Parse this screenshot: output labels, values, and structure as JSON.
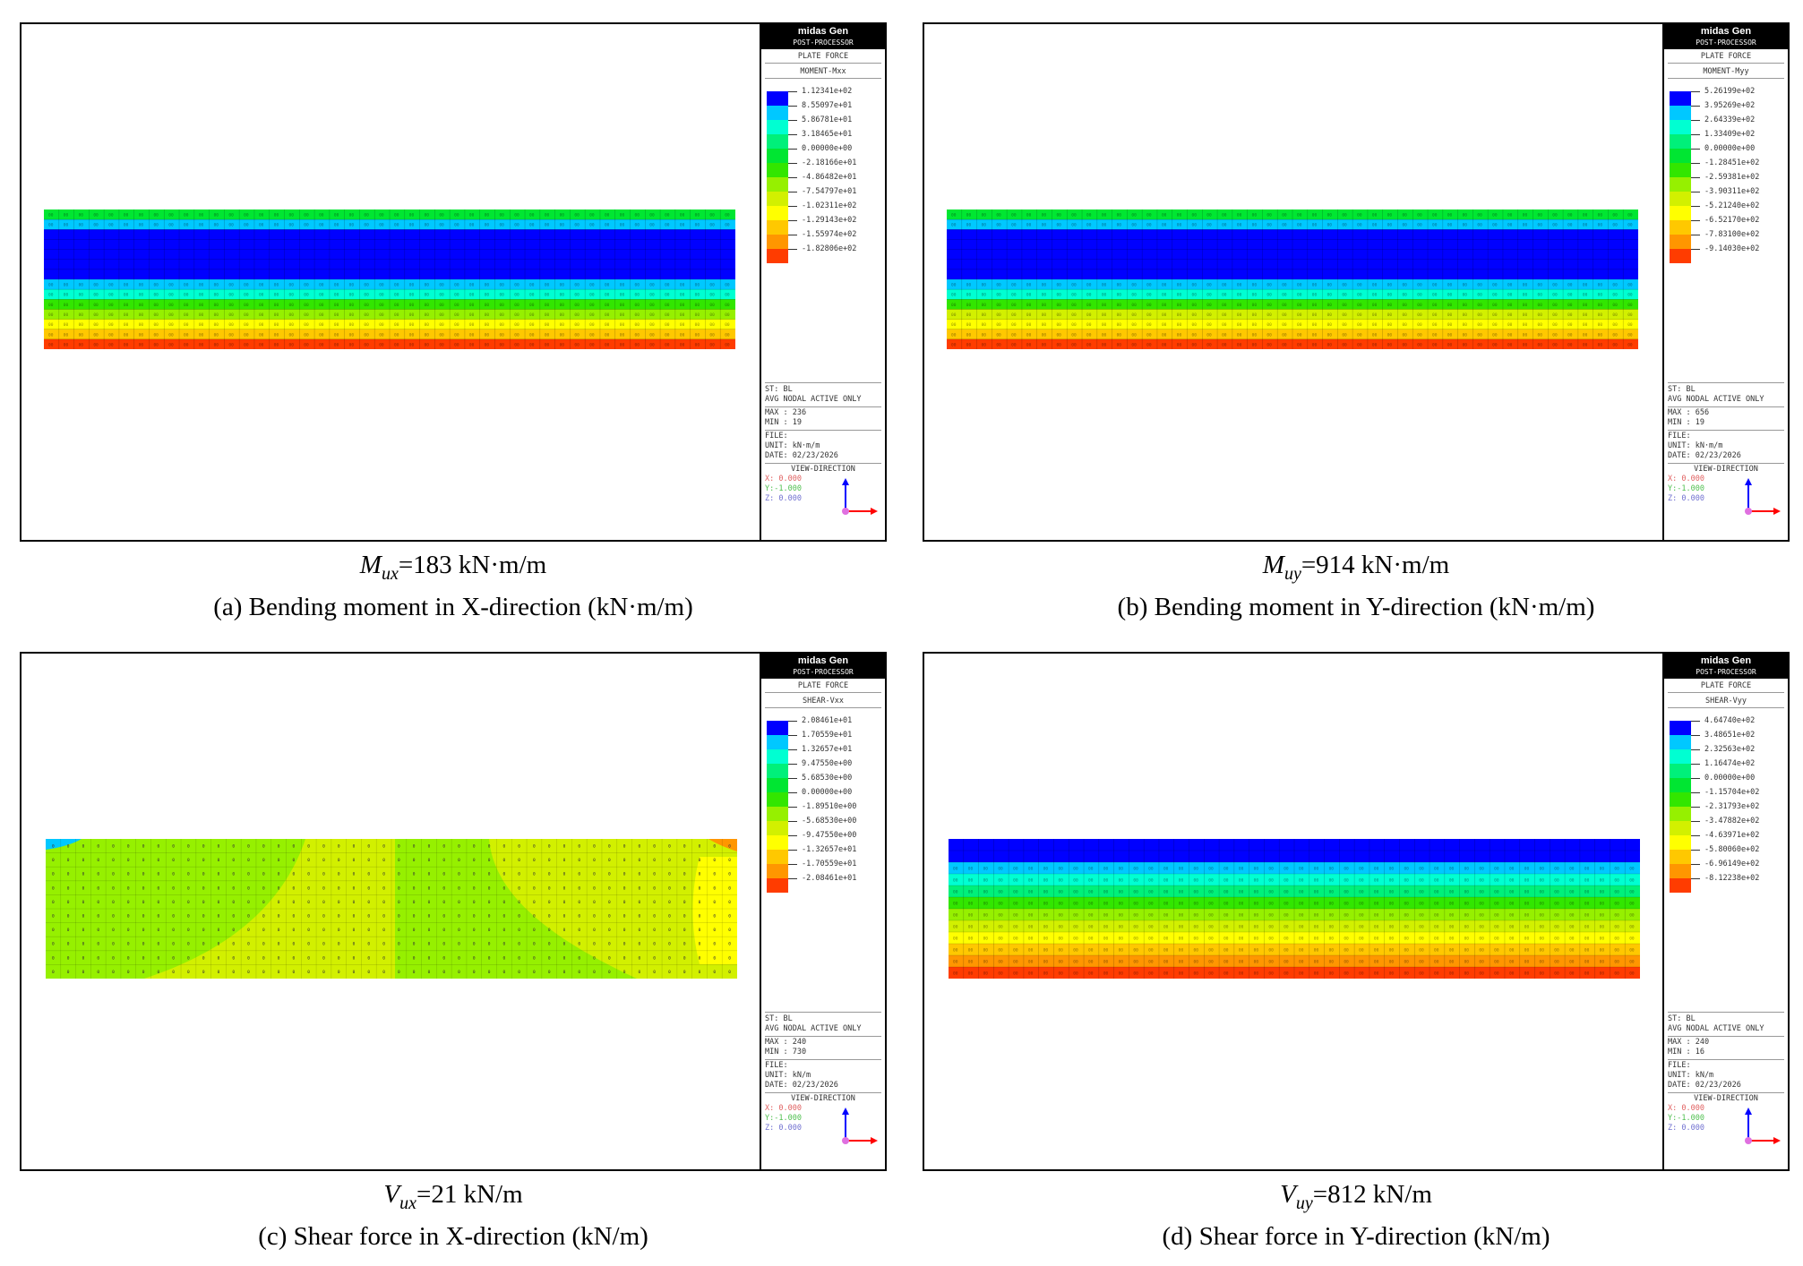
{
  "app": {
    "name": "midas Gen",
    "module": "POST-PROCESSOR",
    "result_type": "PLATE FORCE"
  },
  "panels": [
    {
      "id": "a",
      "component": "MOMENT-Mxx",
      "legend_values": [
        "1.12341e+02",
        "8.55097e+01",
        "5.86781e+01",
        "3.18465e+01",
        "0.00000e+00",
        "-2.18166e+01",
        "-4.86482e+01",
        "-7.54797e+01",
        "-1.02311e+02",
        "-1.29143e+02",
        "-1.55974e+02",
        "-1.82806e+02"
      ],
      "legend_colors": [
        "#0000ff",
        "#00c8ff",
        "#00ffd2",
        "#00f07a",
        "#00e632",
        "#32e600",
        "#96f000",
        "#d2f000",
        "#ffff00",
        "#ffc800",
        "#ff9600",
        "#ff3c00"
      ],
      "info": {
        "st": "ST: BL",
        "avg": "AVG NODAL ACTIVE ONLY",
        "max": "MAX : 236",
        "min": "MIN : 19",
        "file": "FILE:",
        "unit": "UNIT: kN·m/m",
        "date": "DATE: 02/23/2026",
        "view_direction": "VIEW-DIRECTION",
        "vx": "X: 0.000",
        "vy": "Y:-1.000",
        "vz": "Z: 0.000"
      },
      "caption_symbol": "M",
      "caption_sub": "ux",
      "caption_value": "=183 kN·m/m",
      "caption_title": "(a) Bending moment in X-direction (kN·m/m)",
      "band_colors": [
        "#00e632",
        "#00c8ff",
        "#0000ff",
        "#0000ff",
        "#0000ff",
        "#0000ff",
        "#0000ff",
        "#00c8ff",
        "#00ffd2",
        "#32e600",
        "#96f000",
        "#ffff00",
        "#ffc800",
        "#ff3c00"
      ]
    },
    {
      "id": "b",
      "component": "MOMENT-Myy",
      "legend_values": [
        "5.26199e+02",
        "3.95269e+02",
        "2.64339e+02",
        "1.33409e+02",
        "0.00000e+00",
        "-1.28451e+02",
        "-2.59381e+02",
        "-3.90311e+02",
        "-5.21240e+02",
        "-6.52170e+02",
        "-7.83100e+02",
        "-9.14030e+02"
      ],
      "legend_colors": [
        "#0000ff",
        "#00c8ff",
        "#00ffd2",
        "#00f07a",
        "#00e632",
        "#32e600",
        "#96f000",
        "#d2f000",
        "#ffff00",
        "#ffc800",
        "#ff9600",
        "#ff3c00"
      ],
      "info": {
        "st": "ST: BL",
        "avg": "AVG NODAL ACTIVE ONLY",
        "max": "MAX : 656",
        "min": "MIN : 19",
        "file": "FILE:",
        "unit": "UNIT: kN·m/m",
        "date": "DATE: 02/23/2026",
        "view_direction": "VIEW-DIRECTION",
        "vx": "X: 0.000",
        "vy": "Y:-1.000",
        "vz": "Z: 0.000"
      },
      "caption_symbol": "M",
      "caption_sub": "uy",
      "caption_value": "=914 kN·m/m",
      "caption_title": "(b) Bending moment in Y-direction (kN·m/m)",
      "band_colors": [
        "#00e632",
        "#00c8ff",
        "#0000ff",
        "#0000ff",
        "#0000ff",
        "#0000ff",
        "#0000ff",
        "#00c8ff",
        "#00ffd2",
        "#32e600",
        "#d2f000",
        "#ffff00",
        "#ffc800",
        "#ff3c00"
      ]
    },
    {
      "id": "c",
      "component": "SHEAR-Vxx",
      "legend_values": [
        "2.08461e+01",
        "1.70559e+01",
        "1.32657e+01",
        "9.47550e+00",
        "5.68530e+00",
        "0.00000e+00",
        "-1.89510e+00",
        "-5.68530e+00",
        "-9.47550e+00",
        "-1.32657e+01",
        "-1.70559e+01",
        "-2.08461e+01"
      ],
      "legend_colors": [
        "#0000ff",
        "#00c8ff",
        "#00ffd2",
        "#00f07a",
        "#00e632",
        "#32e600",
        "#96f000",
        "#d2f000",
        "#ffff00",
        "#ffc800",
        "#ff9600",
        "#ff3c00"
      ],
      "info": {
        "st": "ST: BL",
        "avg": "AVG NODAL ACTIVE ONLY",
        "max": "MAX : 240",
        "min": "MIN : 730",
        "file": "FILE:",
        "unit": "UNIT: kN/m",
        "date": "DATE: 02/23/2026",
        "view_direction": "VIEW-DIRECTION",
        "vx": "X: 0.000",
        "vy": "Y:-1.000",
        "vz": "Z: 0.000"
      },
      "caption_symbol": "V",
      "caption_sub": "ux",
      "caption_value": "=21 kN/m",
      "caption_title": "(c) Shear force in X-direction (kN/m)",
      "band_colors": [
        "#96f000"
      ]
    },
    {
      "id": "d",
      "component": "SHEAR-Vyy",
      "legend_values": [
        "4.64740e+02",
        "3.48651e+02",
        "2.32563e+02",
        "1.16474e+02",
        "0.00000e+00",
        "-1.15704e+02",
        "-2.31793e+02",
        "-3.47882e+02",
        "-4.63971e+02",
        "-5.80060e+02",
        "-6.96149e+02",
        "-8.12238e+02"
      ],
      "legend_colors": [
        "#0000ff",
        "#00c8ff",
        "#00ffd2",
        "#00f07a",
        "#00e632",
        "#32e600",
        "#96f000",
        "#d2f000",
        "#ffff00",
        "#ffc800",
        "#ff9600",
        "#ff3c00"
      ],
      "info": {
        "st": "ST: BL",
        "avg": "AVG NODAL ACTIVE ONLY",
        "max": "MAX : 240",
        "min": "MIN : 16",
        "file": "FILE:",
        "unit": "UNIT: kN/m",
        "date": "DATE: 02/23/2026",
        "view_direction": "VIEW-DIRECTION",
        "vx": "X: 0.000",
        "vy": "Y:-1.000",
        "vz": "Z: 0.000"
      },
      "caption_symbol": "V",
      "caption_sub": "uy",
      "caption_value": "=812 kN/m",
      "caption_title": "(d) Shear force in Y-direction (kN/m)",
      "band_colors": [
        "#0000ff",
        "#0000ff",
        "#00c8ff",
        "#00ffd2",
        "#00f07a",
        "#32e600",
        "#96f000",
        "#d2f000",
        "#ffff00",
        "#ffc800",
        "#ff9600",
        "#ff3c00"
      ]
    }
  ]
}
